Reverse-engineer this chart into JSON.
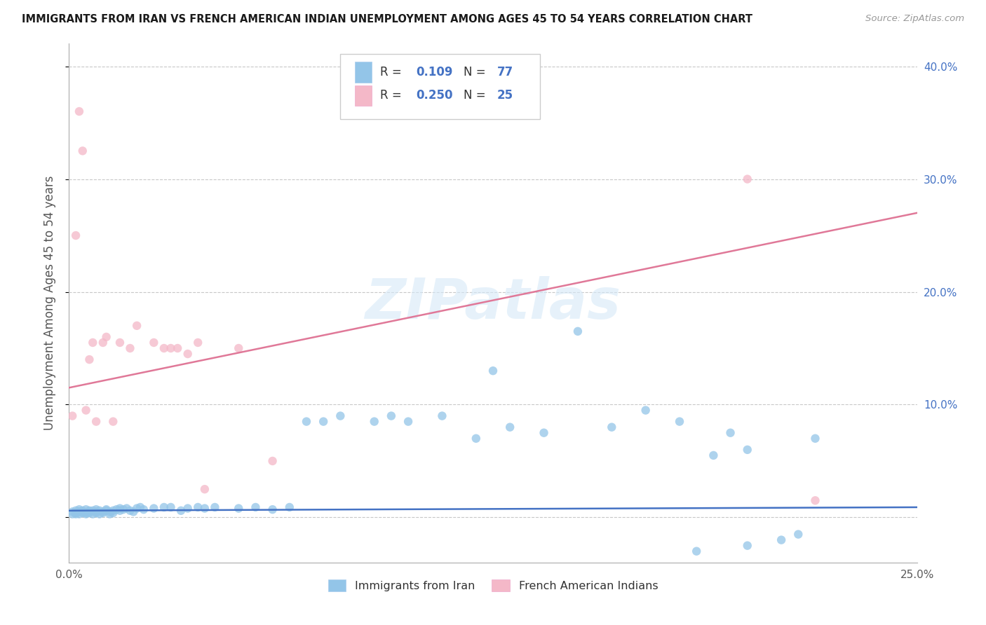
{
  "title": "IMMIGRANTS FROM IRAN VS FRENCH AMERICAN INDIAN UNEMPLOYMENT AMONG AGES 45 TO 54 YEARS CORRELATION CHART",
  "source": "Source: ZipAtlas.com",
  "ylabel": "Unemployment Among Ages 45 to 54 years",
  "xlim": [
    0.0,
    0.25
  ],
  "ylim": [
    -0.04,
    0.42
  ],
  "yticks_right": [
    0.0,
    0.1,
    0.2,
    0.3,
    0.4
  ],
  "ytick_labels_right": [
    "",
    "10.0%",
    "20.0%",
    "30.0%",
    "40.0%"
  ],
  "color_blue": "#93c5e8",
  "color_pink": "#f4b8c8",
  "color_blue_line": "#4472c4",
  "color_pink_line": "#e07898",
  "color_blue_text": "#4472c4",
  "watermark_text": "ZIPatlas",
  "background_color": "#ffffff",
  "grid_color": "#c8c8c8",
  "blue_scatter_x": [
    0.001,
    0.001,
    0.002,
    0.002,
    0.002,
    0.003,
    0.003,
    0.003,
    0.004,
    0.004,
    0.004,
    0.005,
    0.005,
    0.005,
    0.006,
    0.006,
    0.006,
    0.007,
    0.007,
    0.008,
    0.008,
    0.008,
    0.009,
    0.009,
    0.01,
    0.01,
    0.011,
    0.011,
    0.012,
    0.012,
    0.013,
    0.013,
    0.014,
    0.015,
    0.015,
    0.016,
    0.017,
    0.018,
    0.019,
    0.02,
    0.021,
    0.022,
    0.025,
    0.028,
    0.03,
    0.033,
    0.035,
    0.038,
    0.04,
    0.043,
    0.05,
    0.055,
    0.06,
    0.065,
    0.07,
    0.075,
    0.08,
    0.09,
    0.095,
    0.1,
    0.11,
    0.12,
    0.125,
    0.13,
    0.14,
    0.15,
    0.16,
    0.17,
    0.18,
    0.19,
    0.195,
    0.2,
    0.21,
    0.215,
    0.22,
    0.185,
    0.2
  ],
  "blue_scatter_y": [
    0.005,
    0.003,
    0.006,
    0.003,
    0.004,
    0.005,
    0.003,
    0.007,
    0.004,
    0.006,
    0.005,
    0.004,
    0.007,
    0.003,
    0.006,
    0.004,
    0.005,
    0.003,
    0.006,
    0.005,
    0.004,
    0.007,
    0.006,
    0.003,
    0.005,
    0.004,
    0.007,
    0.006,
    0.005,
    0.003,
    0.006,
    0.004,
    0.007,
    0.008,
    0.006,
    0.007,
    0.008,
    0.006,
    0.005,
    0.008,
    0.009,
    0.007,
    0.008,
    0.009,
    0.009,
    0.006,
    0.008,
    0.009,
    0.008,
    0.009,
    0.008,
    0.009,
    0.007,
    0.009,
    0.085,
    0.085,
    0.09,
    0.085,
    0.09,
    0.085,
    0.09,
    0.07,
    0.13,
    0.08,
    0.075,
    0.165,
    0.08,
    0.095,
    0.085,
    0.055,
    0.075,
    0.06,
    -0.02,
    -0.015,
    0.07,
    -0.03,
    -0.025
  ],
  "pink_scatter_x": [
    0.001,
    0.002,
    0.003,
    0.004,
    0.005,
    0.006,
    0.007,
    0.008,
    0.01,
    0.011,
    0.013,
    0.015,
    0.018,
    0.02,
    0.025,
    0.028,
    0.03,
    0.032,
    0.035,
    0.038,
    0.04,
    0.05,
    0.06,
    0.2,
    0.22
  ],
  "pink_scatter_y": [
    0.09,
    0.25,
    0.36,
    0.325,
    0.095,
    0.14,
    0.155,
    0.085,
    0.155,
    0.16,
    0.085,
    0.155,
    0.15,
    0.17,
    0.155,
    0.15,
    0.15,
    0.15,
    0.145,
    0.155,
    0.025,
    0.15,
    0.05,
    0.3,
    0.015
  ],
  "blue_trend_x": [
    0.0,
    0.25
  ],
  "blue_trend_y": [
    0.006,
    0.009
  ],
  "pink_trend_x": [
    0.0,
    0.25
  ],
  "pink_trend_y": [
    0.115,
    0.27
  ]
}
